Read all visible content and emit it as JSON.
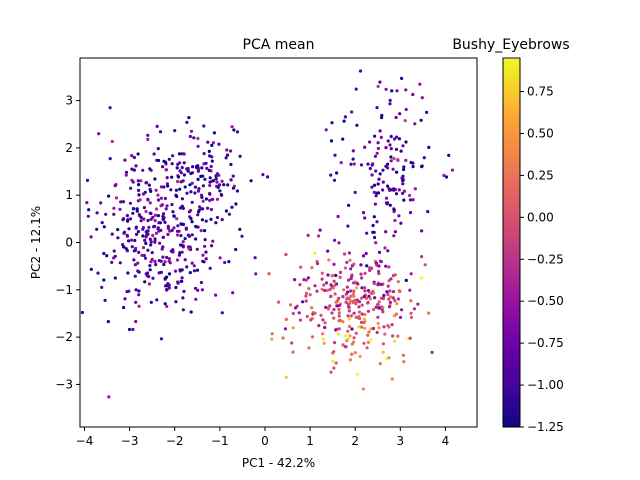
{
  "chart_data": {
    "type": "scatter",
    "title": "PCA mean",
    "colorbar_title": "Bushy_Eyebrows",
    "xlabel": "PC1 - 42.2%",
    "ylabel": "PC2 - 12.1%",
    "xlim": [
      -4.1,
      4.7
    ],
    "ylim": [
      -3.9,
      3.9
    ],
    "x_ticks": [
      -4,
      -3,
      -2,
      -1,
      0,
      1,
      2,
      3,
      4
    ],
    "y_ticks": [
      -3,
      -2,
      -1,
      0,
      1,
      2,
      3
    ],
    "colormap": "plasma",
    "color_range": [
      -1.25,
      0.95
    ],
    "colorbar_ticks": [
      -1.25,
      -1.0,
      -0.75,
      -0.5,
      -0.25,
      0.0,
      0.25,
      0.5,
      0.75
    ],
    "colorbar_tick_labels": [
      "−1.25",
      "−1.00",
      "−0.75",
      "−0.50",
      "−0.25",
      "0.00",
      "0.25",
      "0.50",
      "0.75"
    ],
    "point_count_estimate": 1000,
    "clusters": [
      {
        "label": "",
        "center": [
          -2.3,
          0.3
        ],
        "spread": [
          0.75,
          0.85
        ],
        "value_mean": -0.85,
        "n": 420
      },
      {
        "label": "",
        "center": [
          -1.4,
          1.5
        ],
        "spread": [
          0.5,
          0.6
        ],
        "value_mean": -1.0,
        "n": 90
      },
      {
        "label": "",
        "center": [
          2.0,
          -1.3
        ],
        "spread": [
          0.75,
          0.65
        ],
        "value_mean": 0.05,
        "n": 330
      },
      {
        "label": "",
        "center": [
          2.7,
          1.6
        ],
        "spread": [
          0.55,
          0.9
        ],
        "value_mean": -0.85,
        "n": 160
      }
    ]
  }
}
